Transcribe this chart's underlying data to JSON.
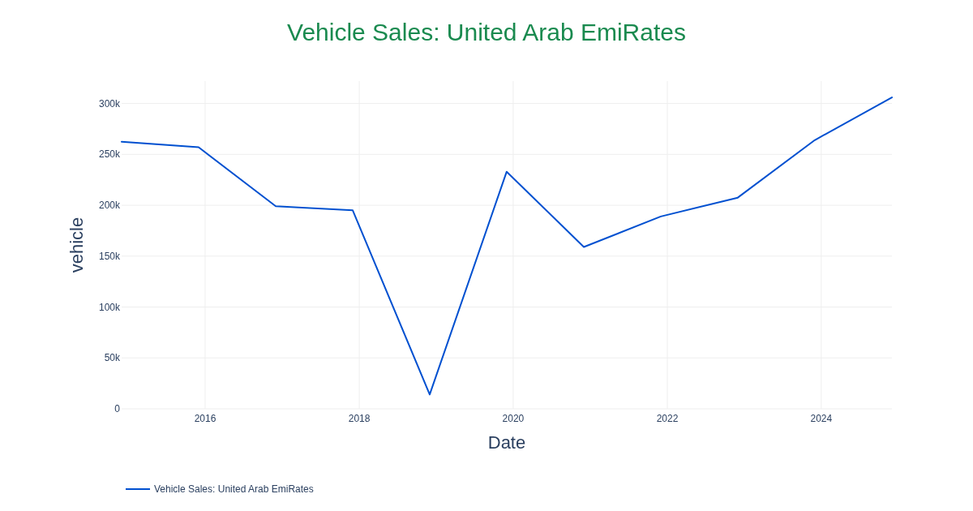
{
  "chart_data": {
    "type": "line",
    "title": "Vehicle Sales: United Arab EmiRates",
    "xlabel": "Date",
    "ylabel": "vehicle",
    "x": [
      "2014-12-01",
      "2015-12-01",
      "2016-12-01",
      "2017-12-01",
      "2018-12-01",
      "2019-12-01",
      "2020-12-01",
      "2021-12-01",
      "2022-12-01",
      "2023-12-01",
      "2024-12-01"
    ],
    "series": [
      {
        "name": "Vehicle Sales: United Arab EmiRates",
        "color": "#0050d0",
        "values": [
          262500,
          257000,
          199000,
          195000,
          14000,
          233000,
          159000,
          189000,
          207500,
          264000,
          306000
        ]
      }
    ],
    "xlim": [
      "2014-12-01",
      "2024-12-01"
    ],
    "xticks": [
      {
        "value": "2016-01-01",
        "label": "2016"
      },
      {
        "value": "2018-01-01",
        "label": "2018"
      },
      {
        "value": "2020-01-01",
        "label": "2020"
      },
      {
        "value": "2022-01-01",
        "label": "2022"
      },
      {
        "value": "2024-01-01",
        "label": "2024"
      }
    ],
    "ylim": [
      0,
      322000
    ],
    "yticks": [
      {
        "value": 0,
        "label": "0"
      },
      {
        "value": 50000,
        "label": "50k"
      },
      {
        "value": 100000,
        "label": "100k"
      },
      {
        "value": 150000,
        "label": "150k"
      },
      {
        "value": 200000,
        "label": "200k"
      },
      {
        "value": 250000,
        "label": "250k"
      },
      {
        "value": 300000,
        "label": "300k"
      }
    ],
    "grid": true,
    "legend": "bottom left",
    "line_style": "solid",
    "marker": "none"
  }
}
